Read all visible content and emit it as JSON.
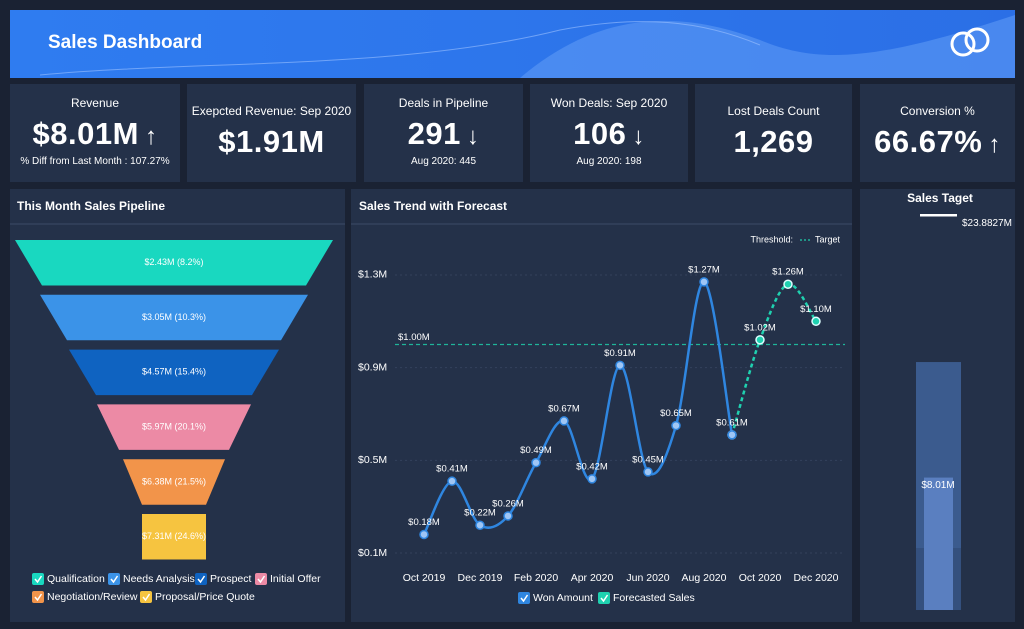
{
  "header": {
    "title": "Sales Dashboard"
  },
  "kpis": [
    {
      "title": "Revenue",
      "value": "$8.01M",
      "arrow": "↑",
      "note": "% Diff from Last Month : 107.27%"
    },
    {
      "title": "Exepcted Revenue: Sep 2020",
      "value": "$1.91M"
    },
    {
      "title": "Deals in Pipeline",
      "value": "291",
      "arrow": "↓",
      "note": "Aug 2020: 445"
    },
    {
      "title": "Won Deals: Sep 2020",
      "value": "106",
      "arrow": "↓",
      "note": "Aug 2020: 198"
    },
    {
      "title": "Lost Deals Count",
      "value": "1,269"
    },
    {
      "title": "Conversion %",
      "value": "66.67%",
      "arrow": "↑"
    }
  ],
  "chart_data": [
    {
      "type": "funnel",
      "title": "This Month Sales Pipeline",
      "categories": [
        "Qualification",
        "Needs Analysis",
        "Prospect",
        "Initial Offer",
        "Negotiation/Review",
        "Proposal/Price Quote"
      ],
      "values": [
        2430000,
        3050000,
        4570000,
        5970000,
        6380000,
        7310000
      ],
      "value_labels": [
        "$2.43M (8.2%)",
        "$3.05M (10.3%)",
        "$4.57M (15.4%)",
        "$5.97M (20.1%)",
        "$6.38M (21.5%)",
        "$7.31M (24.6%)"
      ],
      "colors": [
        "#19d8c0",
        "#3b93e8",
        "#0f63c1",
        "#ec8aa5",
        "#f2944a",
        "#f6c440"
      ]
    },
    {
      "type": "line",
      "title": "Sales Trend with Forecast",
      "categories": [
        "Oct 2019",
        null,
        "Dec 2019",
        null,
        "Feb 2020",
        null,
        "Apr 2020",
        null,
        "Jun 2020",
        null,
        "Aug 2020",
        null,
        "Oct 2020",
        null,
        "Dec 2020"
      ],
      "series": [
        {
          "name": "Won Amount",
          "color": "#2f86e0",
          "values": [
            0.18,
            0.41,
            0.22,
            0.26,
            0.49,
            0.67,
            0.42,
            0.91,
            0.45,
            0.65,
            1.27,
            0.61,
            null,
            null,
            null
          ],
          "value_labels": [
            "$0.18M",
            "$0.41M",
            "$0.22M",
            "$0.26M",
            "$0.49M",
            "$0.67M",
            "$0.42M",
            "$0.91M",
            "$0.45M",
            "$0.65M",
            "$1.27M",
            "$0.61M",
            null,
            null,
            null
          ]
        },
        {
          "name": "Forecasted Sales",
          "color": "#1fd1b0",
          "dashed": true,
          "values": [
            null,
            null,
            null,
            null,
            null,
            null,
            null,
            null,
            null,
            null,
            null,
            0.61,
            1.02,
            1.26,
            1.1
          ],
          "value_labels": [
            null,
            null,
            null,
            null,
            null,
            null,
            null,
            null,
            null,
            null,
            null,
            null,
            "$1.02M",
            "$1.26M",
            "$1.10M"
          ]
        }
      ],
      "ylim": [
        0.05,
        1.45
      ],
      "yticks": [
        {
          "value": 0.1,
          "label": "$0.1M"
        },
        {
          "value": 0.5,
          "label": "$0.5M"
        },
        {
          "value": 0.9,
          "label": "$0.9M"
        },
        {
          "value": 1.3,
          "label": "$1.3M"
        }
      ],
      "grid": true,
      "threshold": {
        "title": "Threshold:",
        "name": "Target",
        "value": 1.0,
        "label": "$1.00M",
        "color": "#1fb59a"
      }
    },
    {
      "type": "bullet",
      "title": "Sales Taget",
      "ylim": [
        0,
        24.5
      ],
      "value": 8.01,
      "value_label": "$8.01M",
      "target": 23.8827,
      "target_label": "$23.8827M",
      "bands": [
        3.75,
        15
      ],
      "band_colors": [
        "#34507e",
        "#3b5b8e"
      ],
      "color": "#5a7fc0"
    }
  ]
}
